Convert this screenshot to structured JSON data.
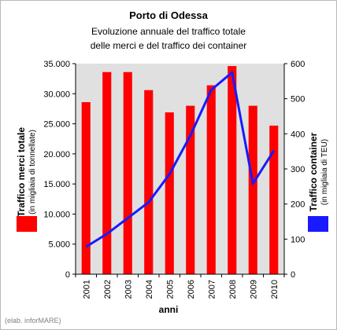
{
  "chart_data": {
    "type": "bar",
    "title": "Porto di Odessa",
    "subtitle_lines": [
      "Evoluzione annuale del traffico totale",
      "delle merci e del traffico dei container"
    ],
    "categories": [
      "2001",
      "2002",
      "2003",
      "2004",
      "2005",
      "2006",
      "2007",
      "2008",
      "2009",
      "2010"
    ],
    "series": [
      {
        "name": "Traffico merci totale",
        "kind": "bar",
        "axis": "left",
        "color": "#ff0000",
        "values": [
          28600,
          33600,
          33600,
          30600,
          26900,
          28000,
          31400,
          34600,
          28000,
          24700
        ]
      },
      {
        "name": "Traffico container",
        "kind": "line",
        "axis": "right",
        "color": "#1a1aff",
        "values": [
          78,
          115,
          160,
          205,
          285,
          395,
          525,
          575,
          258,
          352
        ]
      }
    ],
    "y_left": {
      "label": "Traffico merci totale",
      "sublabel": "(in migliaia di tonnellate)",
      "ylim": [
        0,
        35000
      ],
      "ticks": [
        "0",
        "5.000",
        "10.000",
        "15.000",
        "20.000",
        "25.000",
        "30.000",
        "35.000"
      ]
    },
    "y_right": {
      "label": "Traffico container",
      "sublabel": "(in migliaia di TEU)",
      "ylim": [
        0,
        600
      ],
      "ticks": [
        "0",
        "100",
        "200",
        "300",
        "400",
        "500",
        "600"
      ]
    },
    "xlabel": "anni",
    "plot_background": "#e0e0e0",
    "grid": false,
    "credit": "(elab. inforMARE)"
  }
}
